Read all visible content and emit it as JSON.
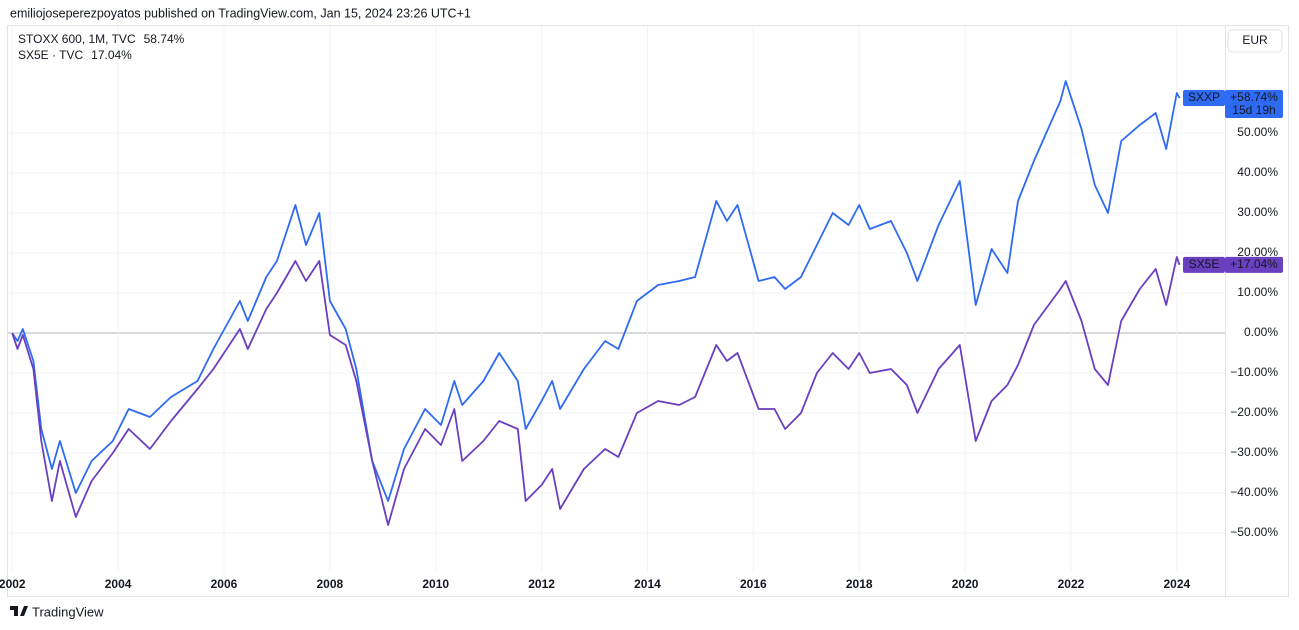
{
  "chart_data": {
    "type": "line",
    "publisher_note": "emiliojoseperezpoyatos published on TradingView.com, Jan 15, 2024 23:26 UTC+1",
    "currency": "EUR",
    "brand": "TradingView",
    "countdown": "15d 19h",
    "x": [
      2002.0,
      2002.1,
      2002.2,
      2002.4,
      2002.55,
      2002.75,
      2002.9,
      2003.2,
      2003.5,
      2003.9,
      2004.2,
      2004.6,
      2005.0,
      2005.5,
      2005.8,
      2006.3,
      2006.45,
      2006.8,
      2007.0,
      2007.35,
      2007.55,
      2007.8,
      2008.0,
      2008.3,
      2008.5,
      2008.8,
      2009.1,
      2009.4,
      2009.8,
      2010.1,
      2010.35,
      2010.5,
      2010.9,
      2011.2,
      2011.55,
      2011.7,
      2012.0,
      2012.2,
      2012.35,
      2012.8,
      2013.2,
      2013.45,
      2013.8,
      2014.2,
      2014.6,
      2014.9,
      2015.3,
      2015.5,
      2015.7,
      2016.1,
      2016.4,
      2016.6,
      2016.9,
      2017.2,
      2017.5,
      2017.8,
      2018.0,
      2018.2,
      2018.6,
      2018.9,
      2019.1,
      2019.5,
      2019.9,
      2020.2,
      2020.5,
      2020.8,
      2021.0,
      2021.3,
      2021.8,
      2021.9,
      2022.2,
      2022.45,
      2022.7,
      2022.95,
      2023.3,
      2023.6,
      2023.8,
      2024.0,
      2024.05
    ],
    "series": [
      {
        "name": "STOXX 600, 1M, TVC",
        "short_name": "SXXP",
        "color": "#2f6bf2",
        "last_value_label": "58.74%",
        "tag_label": "+58.74%",
        "values": [
          0,
          -2,
          1,
          -7,
          -24,
          -34,
          -27,
          -40,
          -32,
          -27,
          -19,
          -21,
          -16,
          -12,
          -4,
          8,
          3,
          14,
          18,
          32,
          22,
          30,
          8,
          1,
          -9,
          -32,
          -42,
          -29,
          -19,
          -23,
          -12,
          -18,
          -12,
          -5,
          -12,
          -24,
          -17,
          -12,
          -19,
          -9,
          -2,
          -4,
          8,
          12,
          13,
          14,
          33,
          28,
          32,
          13,
          14,
          11,
          14,
          22,
          30,
          27,
          32,
          26,
          28,
          20,
          13,
          27,
          38,
          7,
          21,
          15,
          33,
          43,
          58,
          63,
          51,
          37,
          30,
          48,
          52,
          55,
          46,
          60,
          58.74
        ]
      },
      {
        "name": "SX5E · TVC",
        "short_name": "SX5E",
        "color": "#6a3fc0",
        "last_value_label": "17.04%",
        "tag_label": "+17.04%",
        "values": [
          0,
          -4,
          -0.5,
          -9,
          -27,
          -42,
          -32,
          -46,
          -37,
          -30,
          -24,
          -29,
          -22,
          -14,
          -9,
          1,
          -4,
          6,
          10,
          18,
          13,
          18,
          -0.5,
          -3,
          -12,
          -32,
          -48,
          -34,
          -24,
          -28,
          -19,
          -32,
          -27,
          -22,
          -24,
          -42,
          -38,
          -34,
          -44,
          -34,
          -29,
          -31,
          -20,
          -17,
          -18,
          -16,
          -3,
          -7,
          -5,
          -19,
          -19,
          -24,
          -20,
          -10,
          -5,
          -9,
          -5,
          -10,
          -9,
          -13,
          -20,
          -9,
          -3,
          -27,
          -17,
          -13,
          -8,
          2,
          11,
          13,
          3,
          -9,
          -13,
          3,
          11,
          16,
          7,
          19,
          17.04
        ]
      }
    ],
    "xlim": [
      2001.92,
      2024.91
    ],
    "xticks": [
      2002,
      2004,
      2006,
      2008,
      2010,
      2012,
      2014,
      2016,
      2018,
      2020,
      2022,
      2024
    ],
    "ylim": [
      -59.75,
      76.25
    ],
    "yticks": [
      {
        "value": -50,
        "label": "−50.00%"
      },
      {
        "value": -40,
        "label": "−40.00%"
      },
      {
        "value": -30,
        "label": "−30.00%"
      },
      {
        "value": -20,
        "label": "−20.00%"
      },
      {
        "value": -10,
        "label": "−10.00%"
      },
      {
        "value": 0,
        "label": "0.00%"
      },
      {
        "value": 10,
        "label": "10.00%"
      },
      {
        "value": 20,
        "label": "20.00%"
      },
      {
        "value": 30,
        "label": "30.00%"
      },
      {
        "value": 40,
        "label": "40.00%"
      },
      {
        "value": 50,
        "label": "50.00%"
      }
    ],
    "grid": true
  }
}
